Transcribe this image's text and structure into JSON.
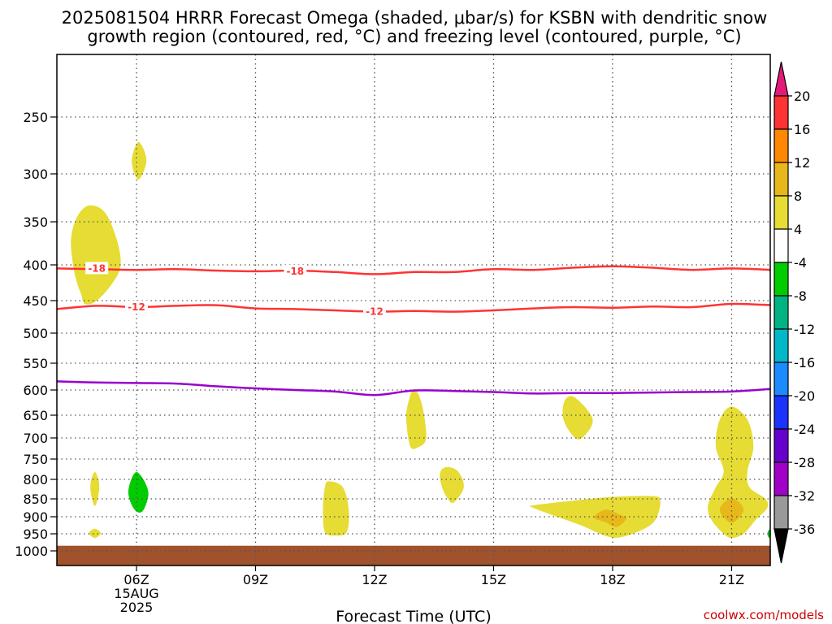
{
  "title_line1": "2025081504 HRRR Forecast Omega (shaded, μbar/s) for KSBN with dendritic snow",
  "title_line2": "growth region (contoured, red, °C) and freezing level (contoured, purple, °C)",
  "credit": "coolwx.com/models",
  "chart_data": {
    "type": "contour",
    "x_axis": {
      "label": "Forecast Time (UTC)",
      "range_hours": [
        4,
        22
      ],
      "ticks": [
        {
          "hour": 6,
          "label": "06Z",
          "sub1": "15AUG",
          "sub2": "2025"
        },
        {
          "hour": 9,
          "label": "09Z"
        },
        {
          "hour": 12,
          "label": "12Z"
        },
        {
          "hour": 15,
          "label": "15Z"
        },
        {
          "hour": 18,
          "label": "18Z"
        },
        {
          "hour": 21,
          "label": "21Z"
        }
      ]
    },
    "y_axis": {
      "unit": "hPa",
      "inverted": true,
      "ticks": [
        250,
        300,
        350,
        400,
        450,
        500,
        550,
        600,
        650,
        700,
        750,
        800,
        850,
        900,
        950,
        1000
      ]
    },
    "grid": true,
    "colorbar": {
      "label_values": [
        20,
        16,
        12,
        8,
        4,
        -4,
        -8,
        -12,
        -16,
        -20,
        -24,
        -28,
        -32,
        -36
      ],
      "colors": [
        "#ff3333",
        "#ff8800",
        "#e8b81a",
        "#e6dc33",
        "#ffffff",
        "#00cc00",
        "#00b383",
        "#00b8c8",
        "#1a8cff",
        "#1a33ff",
        "#6600cc",
        "#a000c8",
        "#999999"
      ],
      "top_arrow_color": "#e6197a",
      "bottom_arrow_color": "#000000"
    },
    "contours": [
      {
        "label": "-18",
        "color": "#ff3333",
        "points": [
          [
            4,
            405
          ],
          [
            5,
            406
          ],
          [
            6,
            407
          ],
          [
            7,
            406
          ],
          [
            8,
            408
          ],
          [
            9,
            409
          ],
          [
            10,
            408
          ],
          [
            11,
            410
          ],
          [
            12,
            413
          ],
          [
            13,
            410
          ],
          [
            14,
            410
          ],
          [
            15,
            406
          ],
          [
            16,
            407
          ],
          [
            17,
            404
          ],
          [
            18,
            402
          ],
          [
            19,
            404
          ],
          [
            20,
            407
          ],
          [
            21,
            405
          ],
          [
            22,
            407
          ]
        ],
        "label_positions": [
          [
            5,
            405
          ],
          [
            10,
            409
          ]
        ]
      },
      {
        "label": "-12",
        "color": "#ff3333",
        "points": [
          [
            4,
            463
          ],
          [
            5,
            458
          ],
          [
            6,
            460
          ],
          [
            7,
            458
          ],
          [
            8,
            457
          ],
          [
            9,
            462
          ],
          [
            10,
            463
          ],
          [
            11,
            465
          ],
          [
            12,
            467
          ],
          [
            13,
            466
          ],
          [
            14,
            467
          ],
          [
            15,
            465
          ],
          [
            16,
            462
          ],
          [
            17,
            460
          ],
          [
            18,
            461
          ],
          [
            19,
            459
          ],
          [
            20,
            460
          ],
          [
            21,
            455
          ],
          [
            22,
            457
          ]
        ],
        "label_positions": [
          [
            6,
            460
          ],
          [
            12,
            467
          ]
        ]
      },
      {
        "label": "freezing level",
        "color": "#9900cc",
        "points": [
          [
            4,
            584
          ],
          [
            5,
            586
          ],
          [
            6,
            587
          ],
          [
            7,
            588
          ],
          [
            8,
            593
          ],
          [
            9,
            597
          ],
          [
            10,
            600
          ],
          [
            11,
            603
          ],
          [
            12,
            610
          ],
          [
            13,
            601
          ],
          [
            14,
            602
          ],
          [
            15,
            604
          ],
          [
            16,
            607
          ],
          [
            17,
            606
          ],
          [
            18,
            606
          ],
          [
            19,
            605
          ],
          [
            20,
            604
          ],
          [
            21,
            603
          ],
          [
            22,
            598
          ]
        ]
      }
    ],
    "shaded_regions": [
      {
        "value_band": "4 to 8",
        "color": "#e6dc33",
        "outline": [
          [
            4.8,
            333
          ],
          [
            5.2,
            340
          ],
          [
            5.5,
            370
          ],
          [
            5.6,
            400
          ],
          [
            5.4,
            425
          ],
          [
            5.0,
            450
          ],
          [
            4.7,
            455
          ],
          [
            4.6,
            440
          ],
          [
            4.5,
            425
          ],
          [
            4.4,
            400
          ],
          [
            4.35,
            370
          ],
          [
            4.5,
            345
          ]
        ]
      },
      {
        "value_band": "4 to 8",
        "color": "#e6dc33",
        "outline": [
          [
            6.05,
            272
          ],
          [
            6.25,
            288
          ],
          [
            6.05,
            306
          ],
          [
            5.88,
            289
          ]
        ]
      },
      {
        "value_band": "4 to 8",
        "color": "#e6dc33",
        "outline": [
          [
            4.95,
            782
          ],
          [
            5.05,
            805
          ],
          [
            5.05,
            835
          ],
          [
            4.95,
            870
          ],
          [
            4.85,
            835
          ],
          [
            4.85,
            805
          ]
        ]
      },
      {
        "value_band": "4 to 8",
        "color": "#e6dc33",
        "outline": [
          [
            4.95,
            935
          ],
          [
            5.1,
            948
          ],
          [
            4.95,
            962
          ],
          [
            4.8,
            948
          ]
        ]
      },
      {
        "value_band": "-4 to -8",
        "color": "#00cc00",
        "outline": [
          [
            6.0,
            782
          ],
          [
            6.2,
            805
          ],
          [
            6.3,
            840
          ],
          [
            6.15,
            885
          ],
          [
            5.95,
            880
          ],
          [
            5.8,
            840
          ],
          [
            5.85,
            805
          ]
        ]
      },
      {
        "value_band": "4 to 8",
        "color": "#e6dc33",
        "outline": [
          [
            10.85,
            805
          ],
          [
            11.2,
            820
          ],
          [
            11.35,
            880
          ],
          [
            11.3,
            945
          ],
          [
            11.0,
            955
          ],
          [
            10.75,
            945
          ],
          [
            10.7,
            880
          ],
          [
            10.75,
            820
          ]
        ]
      },
      {
        "value_band": "4 to 8",
        "color": "#e6dc33",
        "outline": [
          [
            13.0,
            598
          ],
          [
            13.2,
            630
          ],
          [
            13.3,
            700
          ],
          [
            13.1,
            722
          ],
          [
            12.9,
            720
          ],
          [
            12.8,
            660
          ],
          [
            12.85,
            625
          ]
        ]
      },
      {
        "value_band": "4 to 8",
        "color": "#e6dc33",
        "outline": [
          [
            13.8,
            770
          ],
          [
            14.1,
            780
          ],
          [
            14.25,
            820
          ],
          [
            14.0,
            860
          ],
          [
            13.85,
            850
          ],
          [
            13.7,
            820
          ],
          [
            13.65,
            785
          ]
        ]
      },
      {
        "value_band": "4 to 8",
        "color": "#e6dc33",
        "outline": [
          [
            17.05,
            615
          ],
          [
            17.5,
            660
          ],
          [
            17.2,
            702
          ],
          [
            16.95,
            690
          ],
          [
            16.75,
            655
          ],
          [
            16.8,
            620
          ]
        ]
      },
      {
        "value_band": "4 to 8",
        "color": "#e6dc33",
        "outline": [
          [
            16.0,
            868
          ],
          [
            17.0,
            855
          ],
          [
            18.0,
            845
          ],
          [
            19.0,
            843
          ],
          [
            19.2,
            855
          ],
          [
            19.1,
            905
          ],
          [
            18.8,
            935
          ],
          [
            18.2,
            960
          ],
          [
            17.8,
            955
          ],
          [
            17.2,
            925
          ],
          [
            16.6,
            900
          ],
          [
            16.0,
            875
          ]
        ]
      },
      {
        "value_band": "8 to 12",
        "color": "#e8b81a",
        "outline": [
          [
            17.85,
            880
          ],
          [
            18.2,
            895
          ],
          [
            18.35,
            905
          ],
          [
            18.1,
            930
          ],
          [
            17.8,
            915
          ],
          [
            17.55,
            905
          ],
          [
            17.6,
            892
          ]
        ]
      },
      {
        "value_band": "4 to 8",
        "color": "#e6dc33",
        "outline": [
          [
            21.0,
            633
          ],
          [
            21.4,
            660
          ],
          [
            21.55,
            720
          ],
          [
            21.4,
            780
          ],
          [
            21.45,
            820
          ],
          [
            21.85,
            850
          ],
          [
            21.9,
            875
          ],
          [
            21.6,
            910
          ],
          [
            21.3,
            950
          ],
          [
            21.0,
            962
          ],
          [
            20.8,
            950
          ],
          [
            20.5,
            910
          ],
          [
            20.4,
            870
          ],
          [
            20.6,
            820
          ],
          [
            20.8,
            780
          ],
          [
            20.6,
            720
          ],
          [
            20.7,
            660
          ]
        ]
      },
      {
        "value_band": "8 to 12",
        "color": "#e8b81a",
        "outline": [
          [
            21.0,
            848
          ],
          [
            21.3,
            880
          ],
          [
            21.0,
            918
          ],
          [
            20.7,
            880
          ]
        ]
      },
      {
        "value_band": "-4 to -8",
        "color": "#00cc00",
        "outline": [
          [
            21.95,
            938
          ],
          [
            22.0,
            950
          ],
          [
            21.95,
            962
          ],
          [
            21.9,
            950
          ]
        ]
      }
    ],
    "terrain": {
      "color": "#a0522d",
      "top_pressure": 985
    }
  }
}
